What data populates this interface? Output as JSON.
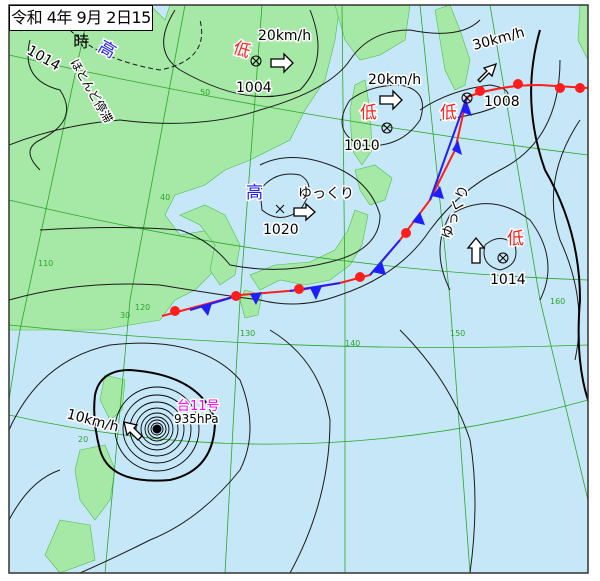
{
  "title": "令和 4年 9月 2日15時",
  "colors": {
    "sea": "#c6e7f7",
    "land": "#a6e8a6",
    "grid": "#2aa52a",
    "isobar": "#1a1a1a",
    "high": "#1e1eff",
    "low": "#ff1e1e",
    "typhoon": "#ff00ff",
    "cold_front": "#1e1eff",
    "warm_front": "#ff1e1e"
  },
  "systems": [
    {
      "kind": "高",
      "pressure": "1014",
      "note": "ほとんど停滞"
    },
    {
      "kind": "低",
      "pressure": "1004",
      "speed": "20km/h"
    },
    {
      "kind": "低",
      "pressure": "1010",
      "speed": "20km/h"
    },
    {
      "kind": "低",
      "pressure": "1008",
      "speed": "30km/h"
    },
    {
      "kind": "高",
      "pressure": "1020",
      "speed": "ゆっくり"
    },
    {
      "kind": "低",
      "pressure": "1014",
      "speed": "ゆっくり"
    }
  ],
  "typhoon": {
    "name": "台11号",
    "pressure": "935hPa",
    "speed": "10km/h"
  },
  "grid_labels": {
    "lat": [
      "50",
      "40",
      "30",
      "20"
    ],
    "lon": [
      "110",
      "120",
      "130",
      "140",
      "150",
      "160"
    ]
  },
  "icons": [
    "low-center-icon",
    "high-center-icon",
    "movement-arrow-icon",
    "typhoon-center-icon"
  ]
}
